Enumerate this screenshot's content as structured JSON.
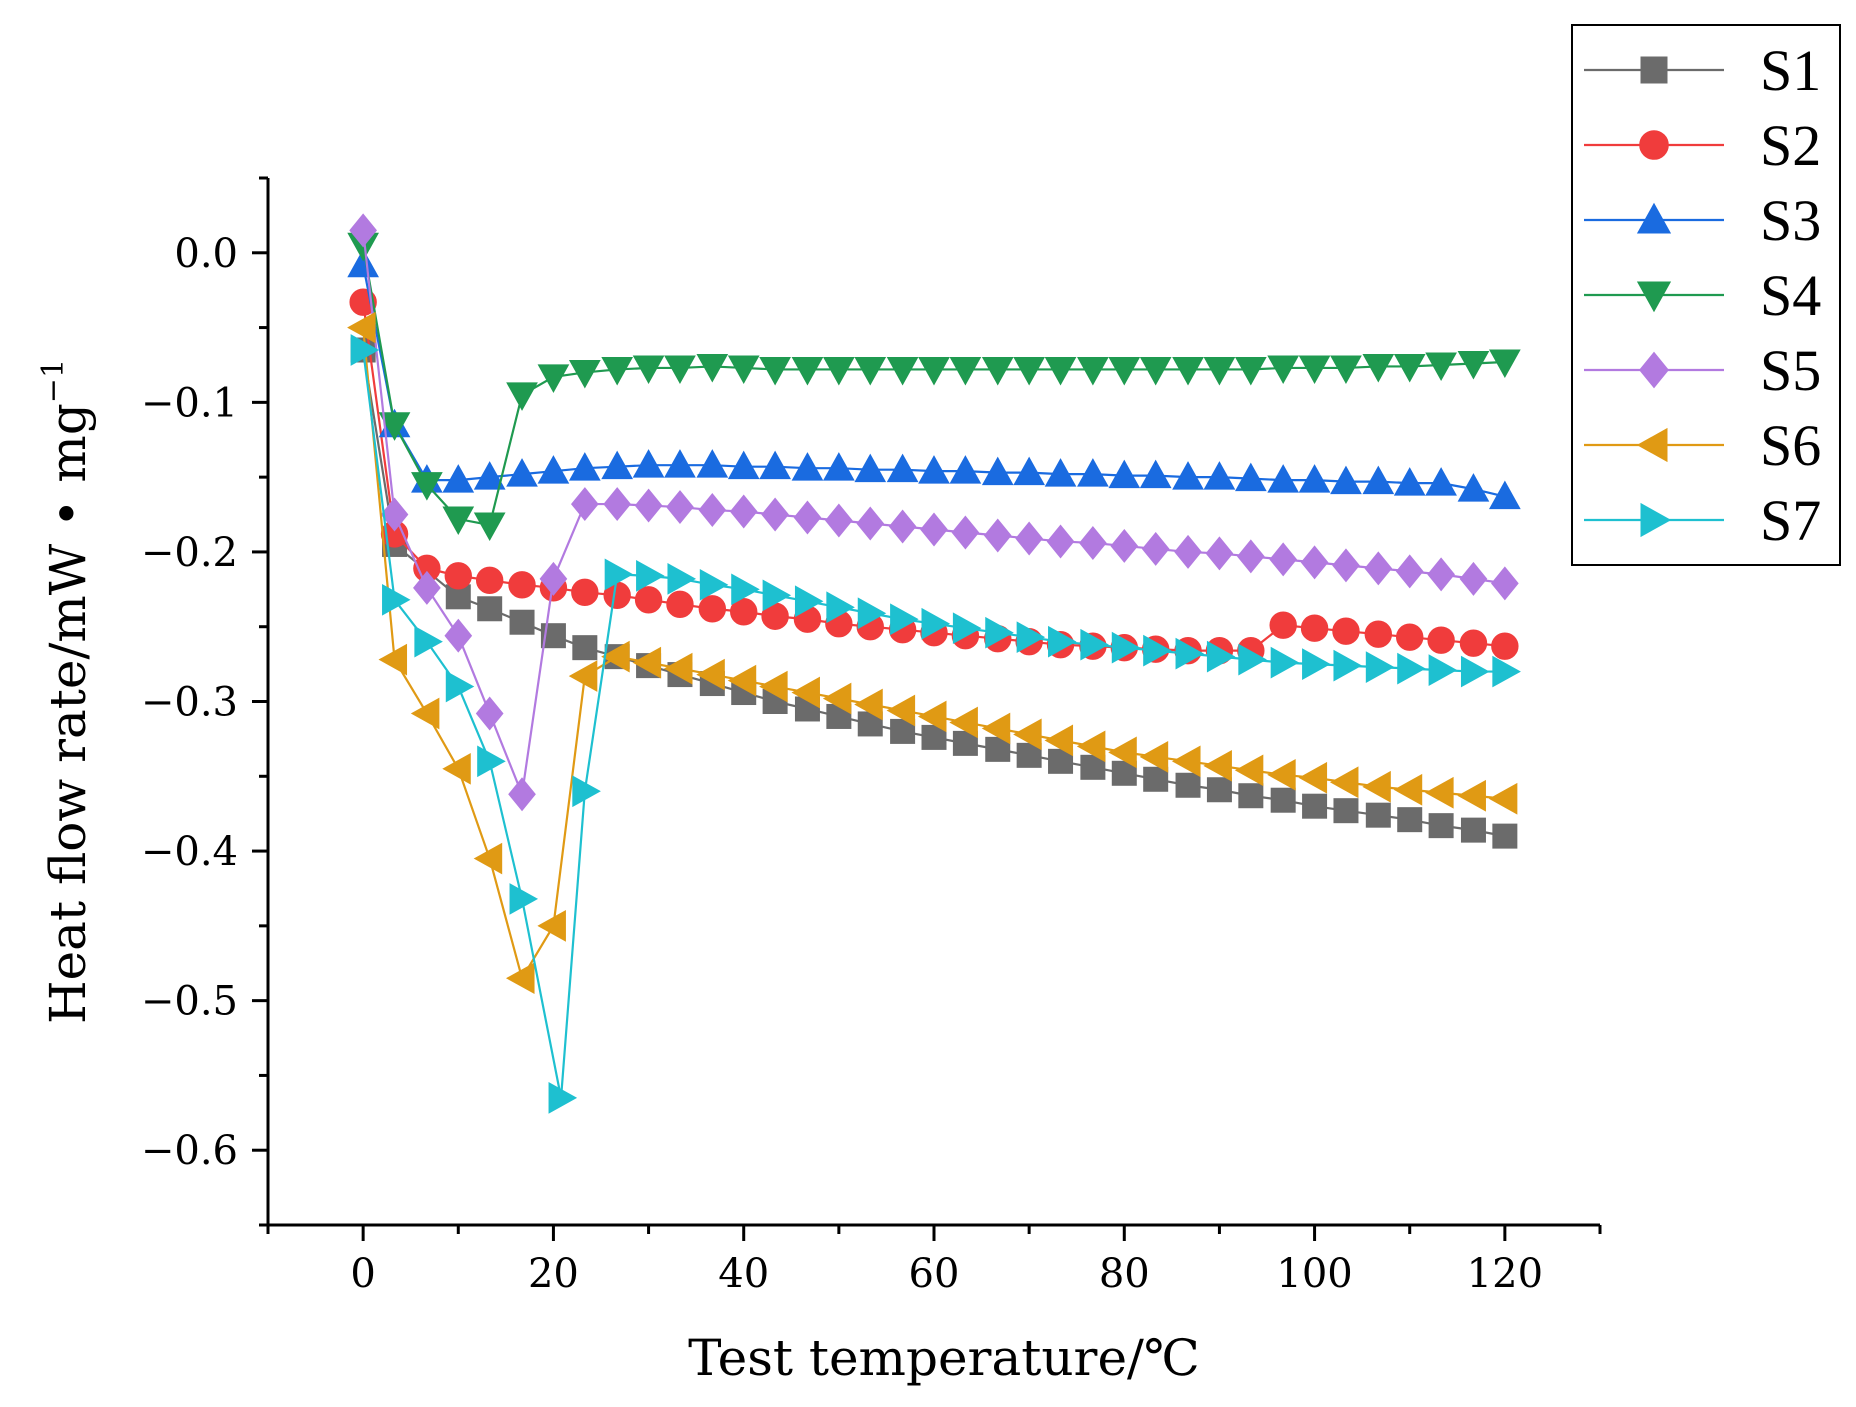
{
  "chart_data": {
    "type": "line",
    "title": "",
    "xlabel": "Test temperature/℃",
    "ylabel": "Heat flow rate/mW • mg",
    "ylabel_sup": "−1",
    "xlim": [
      -10,
      130
    ],
    "ylim": [
      -0.65,
      0.05
    ],
    "x_ticks": [
      0,
      20,
      40,
      60,
      80,
      100,
      120
    ],
    "x_tick_labels": [
      "0",
      "20",
      "40",
      "60",
      "80",
      "100",
      "120"
    ],
    "y_ticks": [
      0.0,
      -0.1,
      -0.2,
      -0.3,
      -0.4,
      -0.5,
      -0.6
    ],
    "y_tick_labels": [
      "0.0",
      "−0.1",
      "−0.2",
      "−0.3",
      "−0.4",
      "−0.5",
      "−0.6"
    ],
    "legend_position": "top-right, outside plot",
    "series": [
      {
        "name": "S1",
        "color": "#6b6b6b",
        "marker": "square",
        "x": [
          0,
          3.3,
          10,
          13.3,
          16.7,
          20,
          23.3,
          26.7,
          30,
          33.3,
          36.7,
          40,
          43.3,
          46.7,
          50,
          53.3,
          56.7,
          60,
          63.3,
          66.7,
          70,
          73.3,
          76.7,
          80,
          83.3,
          86.7,
          90,
          93.3,
          96.7,
          100,
          103.3,
          106.7,
          110,
          113.3,
          116.7,
          120
        ],
        "y": [
          -0.065,
          -0.195,
          -0.23,
          -0.238,
          -0.247,
          -0.256,
          -0.264,
          -0.27,
          -0.276,
          -0.282,
          -0.288,
          -0.294,
          -0.3,
          -0.305,
          -0.31,
          -0.315,
          -0.32,
          -0.324,
          -0.328,
          -0.332,
          -0.336,
          -0.34,
          -0.344,
          -0.348,
          -0.352,
          -0.356,
          -0.359,
          -0.363,
          -0.366,
          -0.37,
          -0.373,
          -0.376,
          -0.379,
          -0.383,
          -0.386,
          -0.39
        ]
      },
      {
        "name": "S2",
        "color": "#f03c3c",
        "marker": "circle",
        "x": [
          0,
          3.3,
          6.7,
          10,
          13.3,
          16.7,
          20,
          23.3,
          26.7,
          30,
          33.3,
          36.7,
          40,
          43.3,
          46.7,
          50,
          53.3,
          56.7,
          60,
          63.3,
          66.7,
          70,
          73.3,
          76.7,
          80,
          83.3,
          86.7,
          90,
          93.3,
          96.7,
          100,
          103.3,
          106.7,
          110,
          113.3,
          116.7,
          120
        ],
        "y": [
          -0.033,
          -0.188,
          -0.211,
          -0.216,
          -0.219,
          -0.222,
          -0.224,
          -0.227,
          -0.229,
          -0.232,
          -0.235,
          -0.238,
          -0.24,
          -0.243,
          -0.245,
          -0.248,
          -0.25,
          -0.252,
          -0.254,
          -0.256,
          -0.258,
          -0.26,
          -0.262,
          -0.263,
          -0.264,
          -0.265,
          -0.266,
          -0.266,
          -0.266,
          -0.249,
          -0.251,
          -0.253,
          -0.255,
          -0.257,
          -0.259,
          -0.261,
          -0.263
        ]
      },
      {
        "name": "S3",
        "color": "#1a6be0",
        "marker": "triangle-up",
        "x": [
          0,
          3.3,
          6.7,
          10,
          13.3,
          16.7,
          20,
          23.3,
          26.7,
          30,
          33.3,
          36.7,
          40,
          43.3,
          46.7,
          50,
          53.3,
          56.7,
          60,
          63.3,
          66.7,
          70,
          73.3,
          76.7,
          80,
          83.3,
          86.7,
          90,
          93.3,
          96.7,
          100,
          103.3,
          106.7,
          110,
          113.3,
          116.7,
          120
        ],
        "y": [
          -0.008,
          -0.115,
          -0.152,
          -0.152,
          -0.15,
          -0.148,
          -0.146,
          -0.144,
          -0.143,
          -0.142,
          -0.142,
          -0.142,
          -0.143,
          -0.143,
          -0.144,
          -0.144,
          -0.145,
          -0.145,
          -0.146,
          -0.146,
          -0.147,
          -0.147,
          -0.148,
          -0.148,
          -0.149,
          -0.149,
          -0.15,
          -0.15,
          -0.151,
          -0.152,
          -0.152,
          -0.153,
          -0.153,
          -0.154,
          -0.154,
          -0.158,
          -0.163
        ]
      },
      {
        "name": "S4",
        "color": "#1f9a50",
        "marker": "triangle-down",
        "x": [
          0,
          3.3,
          6.7,
          10,
          13.3,
          16.7,
          20,
          23.3,
          26.7,
          30,
          33.3,
          36.7,
          40,
          43.3,
          46.7,
          50,
          53.3,
          56.7,
          60,
          63.3,
          66.7,
          70,
          73.3,
          76.7,
          80,
          83.3,
          86.7,
          90,
          93.3,
          96.7,
          100,
          103.3,
          106.7,
          110,
          113.3,
          116.7,
          120
        ],
        "y": [
          0.005,
          -0.115,
          -0.155,
          -0.178,
          -0.182,
          -0.095,
          -0.083,
          -0.08,
          -0.078,
          -0.077,
          -0.077,
          -0.076,
          -0.077,
          -0.078,
          -0.078,
          -0.078,
          -0.078,
          -0.078,
          -0.078,
          -0.078,
          -0.078,
          -0.078,
          -0.078,
          -0.078,
          -0.078,
          -0.078,
          -0.078,
          -0.078,
          -0.078,
          -0.077,
          -0.077,
          -0.077,
          -0.076,
          -0.076,
          -0.075,
          -0.074,
          -0.073
        ]
      },
      {
        "name": "S5",
        "color": "#b27ae0",
        "marker": "diamond",
        "x": [
          0,
          3.3,
          6.7,
          10,
          13.3,
          16.7,
          20,
          23.3,
          26.7,
          30,
          33.3,
          36.7,
          40,
          43.3,
          46.7,
          50,
          53.3,
          56.7,
          60,
          63.3,
          66.7,
          70,
          73.3,
          76.7,
          80,
          83.3,
          86.7,
          90,
          93.3,
          96.7,
          100,
          103.3,
          106.7,
          110,
          113.3,
          116.7,
          120
        ],
        "y": [
          0.015,
          -0.175,
          -0.224,
          -0.256,
          -0.308,
          -0.362,
          -0.218,
          -0.168,
          -0.168,
          -0.169,
          -0.17,
          -0.172,
          -0.173,
          -0.175,
          -0.177,
          -0.179,
          -0.181,
          -0.183,
          -0.185,
          -0.187,
          -0.189,
          -0.191,
          -0.193,
          -0.194,
          -0.196,
          -0.198,
          -0.2,
          -0.201,
          -0.203,
          -0.205,
          -0.207,
          -0.209,
          -0.211,
          -0.213,
          -0.215,
          -0.218,
          -0.221
        ]
      },
      {
        "name": "S6",
        "color": "#e09a14",
        "marker": "triangle-left",
        "x": [
          0,
          3.3,
          6.7,
          10,
          13.3,
          16.7,
          20,
          23.3,
          26.7,
          30,
          33.3,
          36.7,
          40,
          43.3,
          46.7,
          50,
          53.3,
          56.7,
          60,
          63.3,
          66.7,
          70,
          73.3,
          76.7,
          80,
          83.3,
          86.7,
          90,
          93.3,
          96.7,
          100,
          103.3,
          106.7,
          110,
          113.3,
          116.7,
          120
        ],
        "y": [
          -0.05,
          -0.272,
          -0.308,
          -0.345,
          -0.405,
          -0.485,
          -0.45,
          -0.283,
          -0.27,
          -0.274,
          -0.278,
          -0.282,
          -0.286,
          -0.29,
          -0.294,
          -0.298,
          -0.302,
          -0.306,
          -0.31,
          -0.314,
          -0.318,
          -0.322,
          -0.326,
          -0.33,
          -0.334,
          -0.337,
          -0.34,
          -0.343,
          -0.346,
          -0.349,
          -0.351,
          -0.354,
          -0.357,
          -0.359,
          -0.361,
          -0.363,
          -0.365
        ]
      },
      {
        "name": "S7",
        "color": "#1ec0d0",
        "marker": "triangle-right",
        "x": [
          0,
          3.3,
          6.7,
          10,
          13.3,
          16.7,
          20.8,
          23.3,
          26.7,
          30,
          33.3,
          36.7,
          40,
          43.3,
          46.7,
          50,
          53.3,
          56.7,
          60,
          63.3,
          66.7,
          70,
          73.3,
          76.7,
          80,
          83.3,
          86.7,
          90,
          93.3,
          96.7,
          100,
          103.3,
          106.7,
          110,
          113.3,
          116.7,
          120
        ],
        "y": [
          -0.065,
          -0.232,
          -0.26,
          -0.29,
          -0.34,
          -0.432,
          -0.565,
          -0.36,
          -0.215,
          -0.216,
          -0.218,
          -0.222,
          -0.225,
          -0.229,
          -0.233,
          -0.237,
          -0.241,
          -0.245,
          -0.248,
          -0.251,
          -0.254,
          -0.257,
          -0.26,
          -0.262,
          -0.264,
          -0.266,
          -0.268,
          -0.27,
          -0.272,
          -0.274,
          -0.275,
          -0.276,
          -0.277,
          -0.278,
          -0.279,
          -0.28,
          -0.28
        ]
      }
    ]
  }
}
